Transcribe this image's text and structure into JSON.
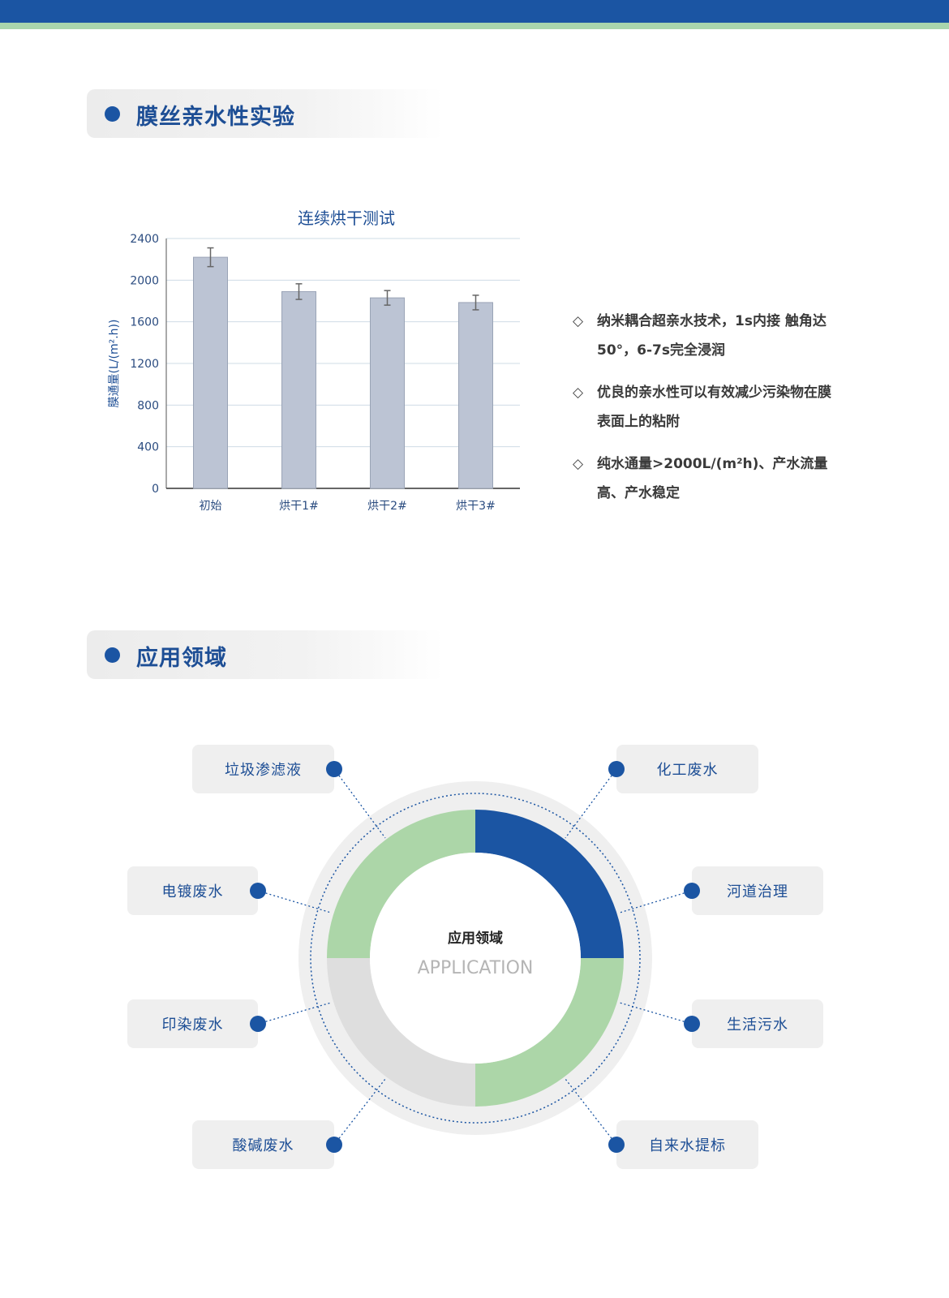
{
  "sections": {
    "hydrophilic": "膜丝亲水性实验",
    "application": "应用领域"
  },
  "colors": {
    "brand_blue": "#1b55a3",
    "green": "#acd6a8",
    "gray": "#dedede",
    "bar": "#bcc4d4"
  },
  "chart_data": {
    "type": "bar",
    "title": "连续烘干测试",
    "ylabel": "膜通量(L/(m².h))",
    "xlabel": "",
    "categories": [
      "初始",
      "烘干1#",
      "烘干2#",
      "烘干3#"
    ],
    "values": [
      2220,
      1890,
      1830,
      1785
    ],
    "error": [
      90,
      75,
      70,
      70
    ],
    "ylim": [
      0,
      2400
    ],
    "yticks": [
      "0",
      "400",
      "800",
      "1200",
      "1600",
      "2000",
      "2400"
    ],
    "grid": true
  },
  "bullets": [
    {
      "icon": "diamond-outline-icon",
      "text": "纳米耦合超亲水技术，1s内接 触角达50°，6-7s完全浸润"
    },
    {
      "icon": "diamond-outline-icon",
      "text": "优良的亲水性可以有效减少污染物在膜表面上的粘附"
    },
    {
      "icon": "diamond-outline-icon",
      "text": "纯水通量>2000L/(m²h)、产水流量高、产水稳定"
    }
  ],
  "donut": {
    "title": "应用领域",
    "subtitle": "APPLICATION"
  },
  "applications": [
    "垃圾渗滤液",
    "化工废水",
    "电镀废水",
    "河道治理",
    "印染废水",
    "生活污水",
    "酸碱废水",
    "自来水提标"
  ]
}
